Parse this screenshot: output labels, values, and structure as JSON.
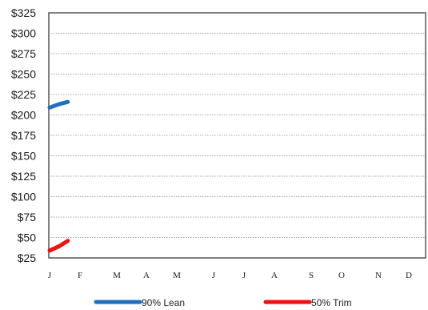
{
  "chart_data": {
    "type": "line",
    "categories": [
      "J",
      "F",
      "M",
      "A",
      "M",
      "J",
      "J",
      "A",
      "S",
      "O",
      "N",
      "D"
    ],
    "ylim": [
      25,
      325
    ],
    "yticks": [
      25,
      50,
      75,
      100,
      125,
      150,
      175,
      200,
      225,
      250,
      275,
      300,
      325
    ],
    "ytick_labels": [
      "$25",
      "$50",
      "$75",
      "$100",
      "$125",
      "$150",
      "$175",
      "$200",
      "$225",
      "$250",
      "$275",
      "$300",
      "$325"
    ],
    "grid": true,
    "legend_position": "bottom",
    "series": [
      {
        "name": "90% Lean",
        "color": "#1f6fc1",
        "points": [
          {
            "x": 0.0,
            "y": 209
          },
          {
            "x": 0.3,
            "y": 213
          },
          {
            "x": 0.6,
            "y": 216
          }
        ]
      },
      {
        "name": "50% Trim",
        "color": "#ee1111",
        "points": [
          {
            "x": 0.0,
            "y": 34
          },
          {
            "x": 0.3,
            "y": 39
          },
          {
            "x": 0.6,
            "y": 46
          }
        ]
      }
    ]
  }
}
